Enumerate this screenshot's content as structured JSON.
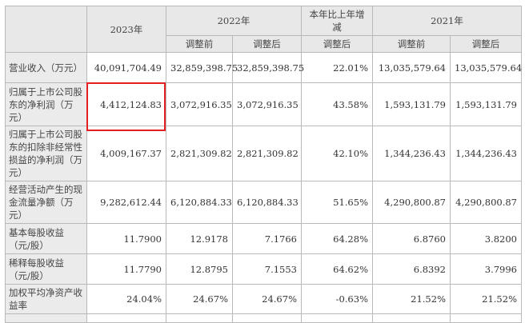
{
  "header": {
    "col_2023": "2023年",
    "col_2022": "2022年",
    "col_change": "本年比上年增减",
    "col_2021": "2021年",
    "before_adjustment": "调整前",
    "after_adjustment": "调整后"
  },
  "rows": [
    {
      "label": "营业收入（万元）",
      "v2023": "40,091,704.49",
      "v2022_before": "32,859,398.75",
      "v2022_after": "32,859,398.75",
      "change": "22.01%",
      "v2021_before": "13,035,579.64",
      "v2021_after": "13,035,579.64"
    },
    {
      "label": "归属于上市公司股东的净利润（万元）",
      "v2023": "4,412,124.83",
      "v2022_before": "3,072,916.35",
      "v2022_after": "3,072,916.35",
      "change": "43.58%",
      "v2021_before": "1,593,131.79",
      "v2021_after": "1,593,131.79"
    },
    {
      "label": "归属于上市公司股东的扣除非经常性损益的净利润（万元）",
      "v2023": "4,009,167.37",
      "v2022_before": "2,821,309.82",
      "v2022_after": "2,821,309.82",
      "change": "42.10%",
      "v2021_before": "1,344,236.43",
      "v2021_after": "1,344,236.43"
    },
    {
      "label": "经营活动产生的现金流量净额（万元）",
      "v2023": "9,282,612.44",
      "v2022_before": "6,120,884.33",
      "v2022_after": "6,120,884.33",
      "change": "51.65%",
      "v2021_before": "4,290,800.87",
      "v2021_after": "4,290,800.87"
    },
    {
      "label": "基本每股收益（元/股）",
      "v2023": "11.7900",
      "v2022_before": "12.9178",
      "v2022_after": "7.1766",
      "change": "64.28%",
      "v2021_before": "6.8760",
      "v2021_after": "3.8200"
    },
    {
      "label": "稀释每股收益（元/股）",
      "v2023": "11.7790",
      "v2022_before": "12.8795",
      "v2022_after": "7.1553",
      "change": "64.62%",
      "v2021_before": "6.8392",
      "v2021_after": "3.7996"
    },
    {
      "label": "加权平均净资产收益率",
      "v2023": "24.04%",
      "v2022_before": "24.67%",
      "v2022_after": "24.67%",
      "change": "-0.63%",
      "v2021_before": "21.52%",
      "v2021_after": "21.52%"
    }
  ],
  "highlight_color": "#e41f1f"
}
